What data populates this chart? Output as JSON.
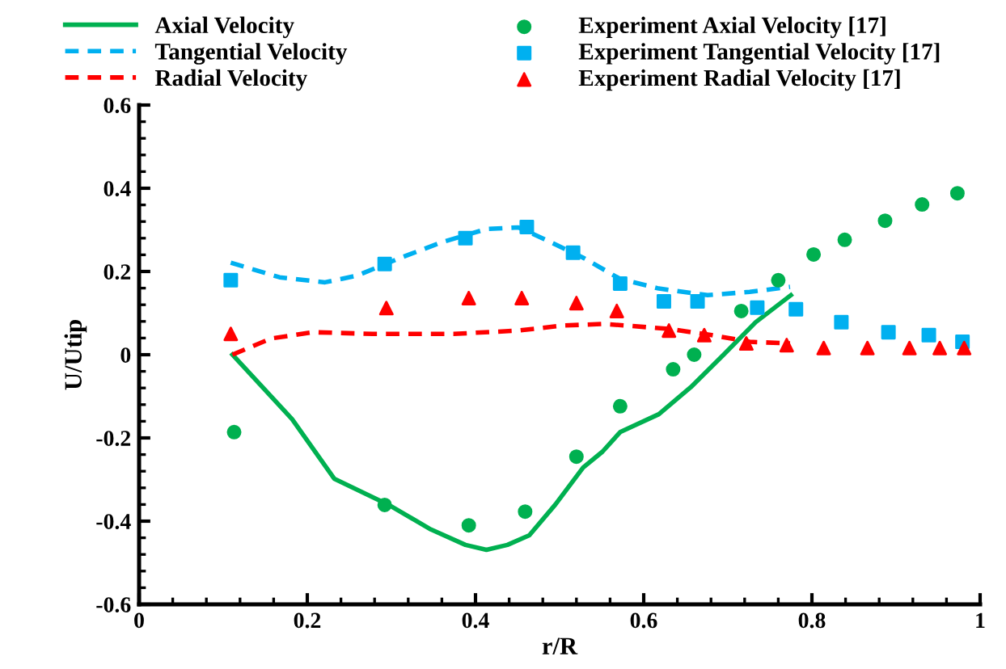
{
  "chart_data": {
    "type": "line",
    "xlabel": "r/R",
    "ylabel": "U/Utip",
    "xlim": [
      0,
      1
    ],
    "ylim": [
      -0.6,
      0.6
    ],
    "xticks": [
      0,
      0.2,
      0.4,
      0.6,
      0.8,
      1
    ],
    "yticks": [
      -0.6,
      -0.4,
      -0.2,
      0,
      0.2,
      0.4,
      0.6
    ],
    "grid": false,
    "legend": "top",
    "series": [
      {
        "name": "Axial Velocity",
        "line_style": "solid",
        "marker": "none",
        "color": "#00b050",
        "x": [
          0.111,
          0.182,
          0.232,
          0.296,
          0.347,
          0.388,
          0.413,
          0.438,
          0.464,
          0.495,
          0.528,
          0.551,
          0.572,
          0.618,
          0.656,
          0.695,
          0.733,
          0.775
        ],
        "values": [
          0,
          -0.155,
          -0.298,
          -0.36,
          -0.42,
          -0.457,
          -0.469,
          -0.457,
          -0.434,
          -0.36,
          -0.271,
          -0.233,
          -0.186,
          -0.143,
          -0.078,
          0,
          0.078,
          0.143
        ]
      },
      {
        "name": "Tangential Velocity",
        "line_style": "dashed",
        "marker": "none",
        "color": "#00b0f0",
        "x": [
          0.109,
          0.167,
          0.221,
          0.259,
          0.311,
          0.361,
          0.413,
          0.451,
          0.489,
          0.528,
          0.572,
          0.618,
          0.676,
          0.726,
          0.774
        ],
        "values": [
          0.221,
          0.186,
          0.174,
          0.19,
          0.233,
          0.271,
          0.302,
          0.306,
          0.271,
          0.233,
          0.182,
          0.159,
          0.143,
          0.151,
          0.163
        ]
      },
      {
        "name": "Radial Velocity",
        "line_style": "dashed",
        "marker": "none",
        "color": "#ff0000",
        "x": [
          0.111,
          0.157,
          0.207,
          0.278,
          0.374,
          0.451,
          0.503,
          0.553,
          0.63,
          0.681,
          0.726,
          0.774
        ],
        "values": [
          0,
          0.039,
          0.054,
          0.05,
          0.05,
          0.058,
          0.07,
          0.074,
          0.062,
          0.047,
          0.031,
          0.027
        ]
      },
      {
        "name": "Experiment Axial Velocity [17]",
        "type": "scatter",
        "marker": "circle",
        "color": "#00b050",
        "x": [
          0.113,
          0.292,
          0.392,
          0.459,
          0.52,
          0.572,
          0.635,
          0.66,
          0.716,
          0.76,
          0.802,
          0.839,
          0.887,
          0.931,
          0.973
        ],
        "values": [
          -0.186,
          -0.361,
          -0.41,
          -0.377,
          -0.245,
          -0.124,
          -0.035,
          0.0,
          0.105,
          0.179,
          0.241,
          0.276,
          0.322,
          0.361,
          0.388
        ]
      },
      {
        "name": "Experiment Tangential Velocity [17]",
        "type": "scatter",
        "marker": "square",
        "color": "#00b0f0",
        "x": [
          0.109,
          0.292,
          0.388,
          0.461,
          0.516,
          0.572,
          0.624,
          0.664,
          0.735,
          0.781,
          0.835,
          0.891,
          0.939,
          0.979
        ],
        "values": [
          0.179,
          0.218,
          0.28,
          0.307,
          0.245,
          0.171,
          0.128,
          0.128,
          0.113,
          0.109,
          0.078,
          0.054,
          0.047,
          0.031
        ]
      },
      {
        "name": "Experiment Radial Velocity [17]",
        "type": "scatter",
        "marker": "triangle",
        "color": "#ff0000",
        "x": [
          0.109,
          0.294,
          0.392,
          0.455,
          0.52,
          0.568,
          0.63,
          0.672,
          0.722,
          0.77,
          0.814,
          0.866,
          0.916,
          0.952,
          0.981
        ],
        "values": [
          0.05,
          0.112,
          0.136,
          0.136,
          0.124,
          0.105,
          0.058,
          0.047,
          0.027,
          0.023,
          0.016,
          0.016,
          0.016,
          0.016,
          0.016
        ]
      }
    ]
  }
}
